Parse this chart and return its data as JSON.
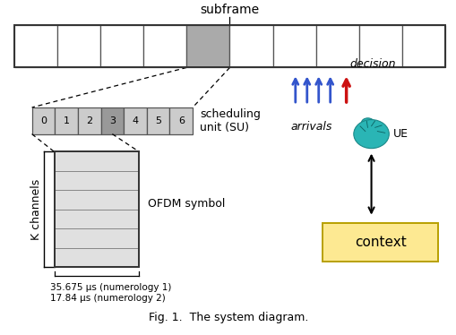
{
  "background_color": "#ffffff",
  "subframe_label": "subframe",
  "subframe_cells": 10,
  "subframe_highlighted": 4,
  "su_labels": [
    "0",
    "1",
    "2",
    "3",
    "4",
    "5",
    "6"
  ],
  "su_highlighted": 3,
  "scheduling_unit_label": "scheduling\nunit (SU)",
  "ofdm_rows": 6,
  "ofdm_label": "OFDM symbol",
  "k_channels_label": "K channels",
  "time_label1": "35.675 μs (numerology 1)",
  "time_label2": "17.84 μs (numerology 2)",
  "context_box_label": "context",
  "ue_label": "UE",
  "arrivals_label": "arrivals",
  "decision_label": "decision",
  "cell_color_normal": "#ffffff",
  "cell_color_highlighted": "#aaaaaa",
  "su_color_normal": "#cccccc",
  "su_color_highlighted": "#999999",
  "ofdm_color": "#e0e0e0",
  "context_color": "#fde992",
  "context_edge": "#b8a000",
  "teal_color": "#2ab5b5",
  "arrow_blue": "#3355cc",
  "arrow_red": "#cc1111",
  "fig_w": 5.1,
  "fig_h": 3.74,
  "dpi": 100
}
